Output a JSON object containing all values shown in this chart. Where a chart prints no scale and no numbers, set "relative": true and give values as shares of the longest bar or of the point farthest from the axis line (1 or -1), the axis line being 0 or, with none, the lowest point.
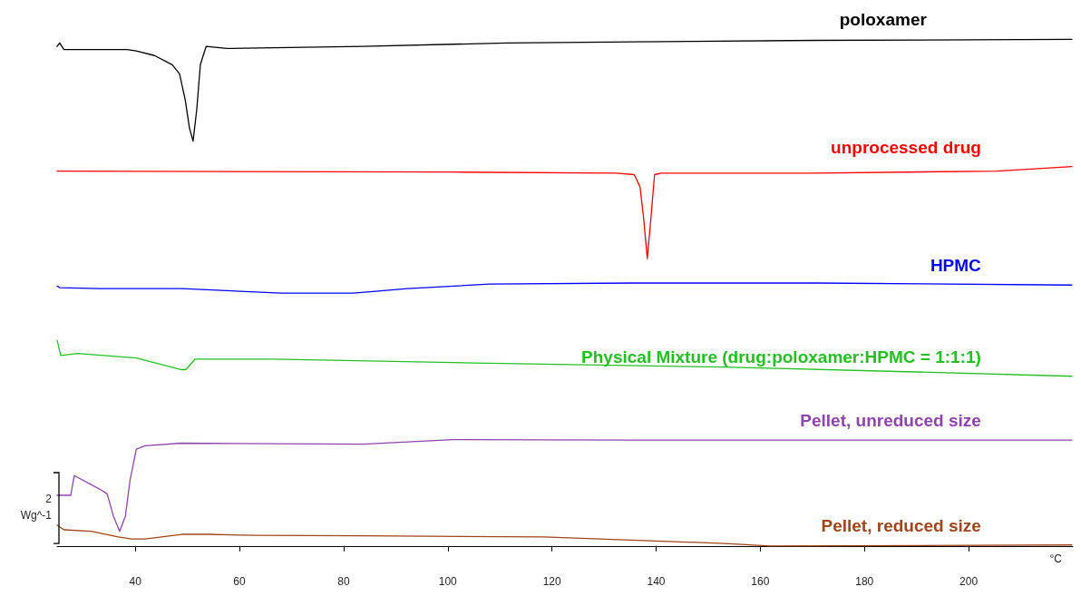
{
  "chart_data": {
    "type": "line",
    "relative": true,
    "xlabel": "°C",
    "xlim": [
      25,
      220
    ],
    "xticks": [
      40,
      60,
      80,
      100,
      120,
      140,
      160,
      180,
      200
    ],
    "grid": false,
    "legend": false,
    "marker": "none",
    "line_style": "solid",
    "annotations": [
      "2",
      "Wg^-1"
    ],
    "series": [
      {
        "name": "poloxamer",
        "color": "#000000",
        "x": [
          25,
          25.5,
          26.3,
          38.4,
          40.2,
          43.7,
          47.1,
          48.5,
          49.6,
          50.4,
          51.1,
          51.8,
          52.5,
          53.6,
          57.6,
          83.7,
          111.5,
          135.8,
          170.6,
          219.8
        ],
        "values": [
          0.986,
          0.993,
          0.98,
          0.98,
          0.977,
          0.968,
          0.95,
          0.932,
          0.88,
          0.825,
          0.799,
          0.861,
          0.95,
          0.986,
          0.982,
          0.986,
          0.993,
          0.995,
          0.998,
          1.0
        ]
      },
      {
        "name": "unprocessed drug",
        "color": "#ff0000",
        "x": [
          25,
          101,
          132.3,
          135.8,
          136.9,
          137.6,
          138.3,
          139,
          139.7,
          141,
          170.6,
          205.4,
          219.8
        ],
        "values": [
          0.74,
          0.738,
          0.736,
          0.733,
          0.709,
          0.647,
          0.567,
          0.647,
          0.733,
          0.736,
          0.736,
          0.74,
          0.749
        ]
      },
      {
        "name": "HPMC",
        "color": "#0000ff",
        "x": [
          25,
          25.5,
          33.2,
          48.9,
          68,
          81.9,
          92.3,
          108,
          135.8,
          170.6,
          219.8
        ],
        "values": [
          0.513,
          0.51,
          0.508,
          0.508,
          0.499,
          0.499,
          0.508,
          0.517,
          0.519,
          0.519,
          0.515
        ]
      },
      {
        "name": "Physical Mixture (drug:poloxamer:HPMC = 1:1:1)",
        "color": "#22c022",
        "x": [
          25,
          25.7,
          28.9,
          40.2,
          48.9,
          49.7,
          51.5,
          66.3,
          101,
          153.2,
          188,
          219.8
        ],
        "values": [
          0.406,
          0.376,
          0.38,
          0.371,
          0.348,
          0.348,
          0.369,
          0.369,
          0.362,
          0.353,
          0.344,
          0.335
        ]
      },
      {
        "name": "Pellet, unreduced size",
        "color": "#8e44ad",
        "x": [
          25,
          27.6,
          28.3,
          33.2,
          34.6,
          35.8,
          37,
          38.1,
          39,
          40.2,
          41.9,
          48.9,
          83.7,
          101,
          135.8,
          219.8
        ],
        "values": [
          0.1,
          0.1,
          0.139,
          0.112,
          0.103,
          0.059,
          0.029,
          0.059,
          0.13,
          0.191,
          0.198,
          0.203,
          0.201,
          0.21,
          0.209,
          0.209
        ]
      },
      {
        "name": "Pellet, reduced size",
        "color": "#a0441a",
        "x": [
          25,
          26.3,
          31.5,
          36.7,
          39.3,
          41.9,
          48.9,
          54.1,
          62.8,
          83.7,
          118.4,
          153.2,
          161.9,
          219.8
        ],
        "values": [
          0.041,
          0.032,
          0.029,
          0.018,
          0.014,
          0.014,
          0.023,
          0.023,
          0.021,
          0.02,
          0.018,
          0.005,
          0,
          0.002
        ]
      }
    ]
  }
}
